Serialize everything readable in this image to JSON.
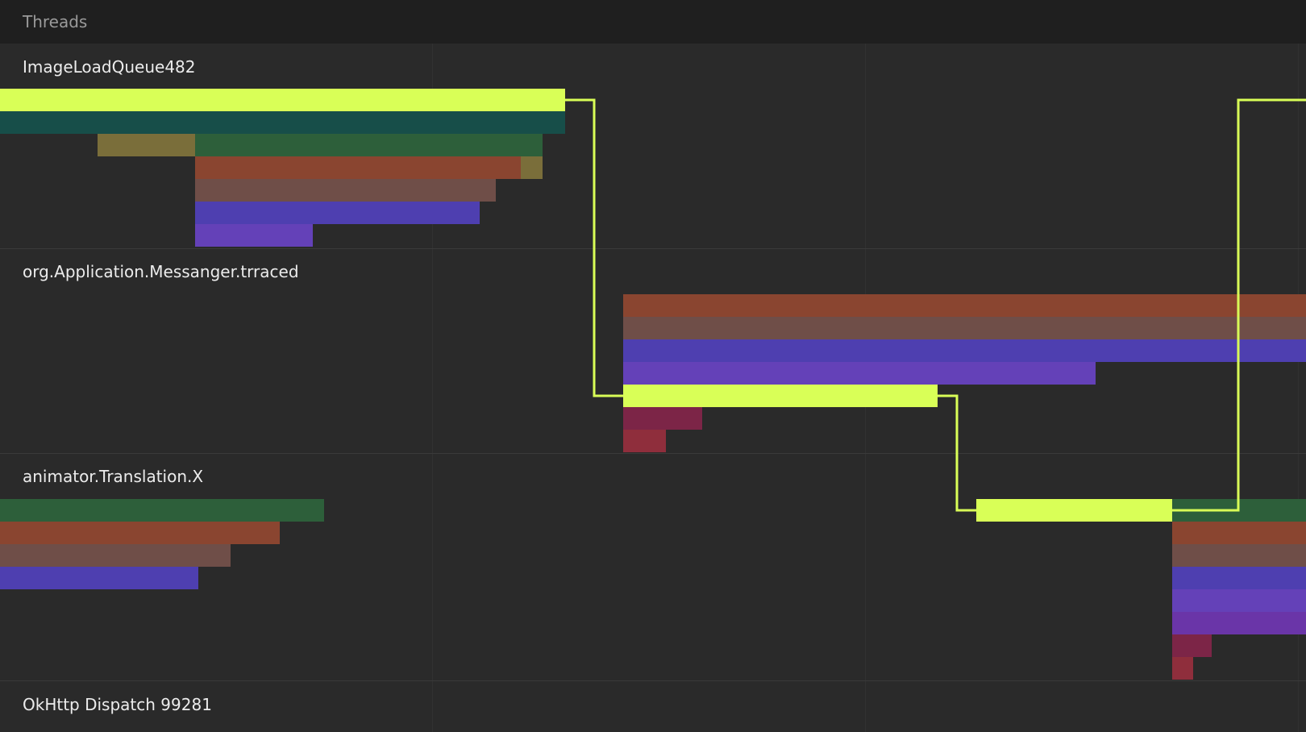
{
  "header": {
    "title": "Threads"
  },
  "threads": [
    {
      "label": "ImageLoadQueue482"
    },
    {
      "label": "org.Application.Messanger.trraced"
    },
    {
      "label": "animator.Translation.X"
    },
    {
      "label": "OkHttp Dispatch 99281"
    }
  ],
  "colors": {
    "background": "#2a2a2a",
    "header_background": "#1f1f1f",
    "highlight": "#d9ff57",
    "teal": "#174e49",
    "olive": "#7a6e3a",
    "green": "#2d5f3a",
    "rust": "#8a4530",
    "taupe": "#6f4e48",
    "indigo": "#4e3fb0",
    "violet": "#6441b8",
    "purple": "#6a35a8",
    "maroon": "#7c2547",
    "crimson": "#8f2e3c"
  }
}
